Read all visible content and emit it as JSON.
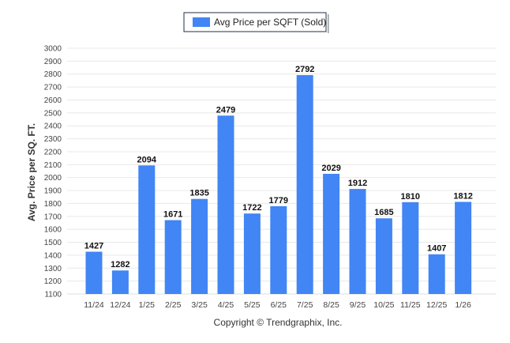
{
  "chart_data": {
    "type": "bar",
    "title": "",
    "legend": [
      "Avg Price per SQFT (Sold)"
    ],
    "legend_placement": "top-center",
    "ylabel": "Avg. Price per SQ. FT.",
    "xlabel": "",
    "categories": [
      "11/24",
      "12/24",
      "1/25",
      "2/25",
      "3/25",
      "4/25",
      "5/25",
      "6/25",
      "7/25",
      "8/25",
      "9/25",
      "10/25",
      "11/25",
      "12/25",
      "1/26"
    ],
    "series": [
      {
        "name": "Avg Price per SQFT (Sold)",
        "values": [
          1427,
          1282,
          2094,
          1671,
          1835,
          2479,
          1722,
          1779,
          2792,
          2029,
          1912,
          1685,
          1810,
          1407,
          1812
        ]
      }
    ],
    "ylim": [
      1100,
      3000
    ],
    "yticks": [
      1100,
      1200,
      1300,
      1400,
      1500,
      1600,
      1700,
      1800,
      1900,
      2000,
      2100,
      2200,
      2300,
      2400,
      2500,
      2600,
      2700,
      2800,
      2900,
      3000
    ],
    "grid": true,
    "bar_color": "#4285f4",
    "footer": "Copyright © Trendgraphix, Inc."
  }
}
